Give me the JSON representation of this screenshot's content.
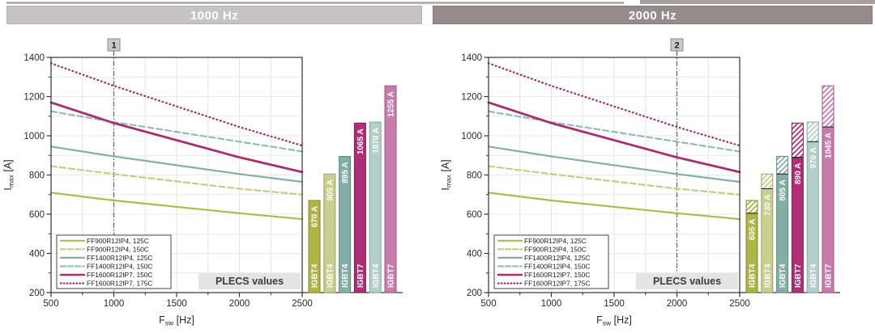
{
  "panels": [
    {
      "title": "1000 Hz",
      "title_bg": "#c7c3c3"
    },
    {
      "title": "2000 Hz",
      "title_bg": "#968a8a"
    }
  ],
  "chart_data": [
    {
      "type": "line+bar",
      "title": "1000 Hz",
      "xlabel": {
        "base": "F",
        "sub": "sw",
        "unit": " [Hz]"
      },
      "ylabel": {
        "base": "I",
        "sub": "max",
        "unit": " [A]"
      },
      "xlim": [
        500,
        2500
      ],
      "ylim": [
        200,
        1400
      ],
      "x_ticks": [
        500,
        1000,
        1500,
        2000,
        2500
      ],
      "y_ticks": [
        200,
        400,
        600,
        800,
        1000,
        1200,
        1400
      ],
      "grid": {
        "on": true,
        "x_step": 250,
        "y_step": 100
      },
      "marker": {
        "label": "1",
        "x": 1000
      },
      "annotation": "PLECS values",
      "x": [
        500,
        1000,
        2000,
        2500
      ],
      "series": [
        {
          "name": "FF900R12IP4, 125C",
          "style": "solid",
          "color": "#b1b94b",
          "width": 2.2,
          "values": [
            710,
            670,
            605,
            575
          ]
        },
        {
          "name": "FF900R12IP4, 150C",
          "style": "dashed",
          "color": "#c6cc83",
          "width": 2.2,
          "values": [
            845,
            805,
            730,
            700
          ]
        },
        {
          "name": "FF1400R12IP4, 125C",
          "style": "solid",
          "color": "#83afa7",
          "width": 2.2,
          "values": [
            945,
            895,
            805,
            765
          ]
        },
        {
          "name": "FF1400R12IP4, 150C",
          "style": "dashed",
          "color": "#93bdb4",
          "width": 2.2,
          "values": [
            1125,
            1070,
            970,
            920
          ]
        },
        {
          "name": "FF1600R12IP7, 150C",
          "style": "solid",
          "color": "#ac2d70",
          "width": 2.8,
          "values": [
            1170,
            1065,
            890,
            815
          ]
        },
        {
          "name": "FF1600R12IP7, 175C",
          "style": "dotted",
          "color": "#ac2d70",
          "width": 2.4,
          "values": [
            1370,
            1255,
            1045,
            950
          ]
        }
      ],
      "bars": [
        {
          "category": "IGBT4",
          "label": "670 A",
          "value": 670,
          "fill": "#adb545",
          "stroke": "#828930"
        },
        {
          "category": "IGBT4",
          "label": "805 A",
          "value": 805,
          "fill": "#c9cf8e",
          "stroke": "#9aa166"
        },
        {
          "category": "IGBT4",
          "label": "895 A",
          "value": 895,
          "fill": "#83aea5",
          "stroke": "#5f8d84"
        },
        {
          "category": "IGBT7",
          "label": "1065 A",
          "value": 1065,
          "fill": "#b02e76",
          "stroke": "#801f56"
        },
        {
          "category": "IGBT4",
          "label": "1070 A",
          "value": 1070,
          "fill": "#b3cfc9",
          "stroke": "#86aaa2"
        },
        {
          "category": "IGBT7",
          "label": "1255 A",
          "value": 1255,
          "fill": "#c87cac",
          "stroke": "#9f5784"
        }
      ]
    },
    {
      "type": "line+bar",
      "title": "2000 Hz",
      "xlabel": {
        "base": "F",
        "sub": "sw",
        "unit": " [Hz]"
      },
      "ylabel": {
        "base": "I",
        "sub": "max",
        "unit": " [A]"
      },
      "xlim": [
        500,
        2500
      ],
      "ylim": [
        200,
        1400
      ],
      "x_ticks": [
        500,
        1000,
        1500,
        2000,
        2500
      ],
      "y_ticks": [
        200,
        400,
        600,
        800,
        1000,
        1200,
        1400
      ],
      "grid": {
        "on": true,
        "x_step": 250,
        "y_step": 100
      },
      "marker": {
        "label": "2",
        "x": 2000
      },
      "annotation": "PLECS values",
      "x": [
        500,
        1000,
        2000,
        2500
      ],
      "series": [
        {
          "name": "FF900R12IP4, 125C",
          "style": "solid",
          "color": "#b1b94b",
          "width": 2.2,
          "values": [
            710,
            670,
            605,
            575
          ]
        },
        {
          "name": "FF900R12IP4, 150C",
          "style": "dashed",
          "color": "#c6cc83",
          "width": 2.2,
          "values": [
            845,
            805,
            730,
            700
          ]
        },
        {
          "name": "FF1400R12IP4, 125C",
          "style": "solid",
          "color": "#83afa7",
          "width": 2.2,
          "values": [
            945,
            895,
            805,
            765
          ]
        },
        {
          "name": "FF1400R12IP4, 150C",
          "style": "dashed",
          "color": "#93bdb4",
          "width": 2.2,
          "values": [
            1125,
            1070,
            970,
            920
          ]
        },
        {
          "name": "FF1600R12IP7, 150C",
          "style": "solid",
          "color": "#ac2d70",
          "width": 2.8,
          "values": [
            1170,
            1065,
            890,
            815
          ]
        },
        {
          "name": "FF1600R12IP7, 175C",
          "style": "dotted",
          "color": "#ac2d70",
          "width": 2.4,
          "values": [
            1370,
            1255,
            1045,
            950
          ]
        }
      ],
      "bars": [
        {
          "category": "IGBT4",
          "label": "605 A",
          "value": 605,
          "hatch_to": 670,
          "fill": "#adb545",
          "stroke": "#828930"
        },
        {
          "category": "IGBT4",
          "label": "730 A",
          "value": 730,
          "hatch_to": 805,
          "fill": "#c9cf8e",
          "stroke": "#9aa166"
        },
        {
          "category": "IGBT4",
          "label": "805 A",
          "value": 805,
          "hatch_to": 895,
          "fill": "#83aea5",
          "stroke": "#5f8d84"
        },
        {
          "category": "IGBT7",
          "label": "890 A",
          "value": 890,
          "hatch_to": 1065,
          "fill": "#b02e76",
          "stroke": "#801f56"
        },
        {
          "category": "IGBT4",
          "label": "970 A",
          "value": 970,
          "hatch_to": 1070,
          "fill": "#b3cfc9",
          "stroke": "#86aaa2"
        },
        {
          "category": "IGBT7",
          "label": "1045 A",
          "value": 1045,
          "hatch_to": 1255,
          "fill": "#c87cac",
          "stroke": "#9f5784"
        }
      ]
    }
  ]
}
